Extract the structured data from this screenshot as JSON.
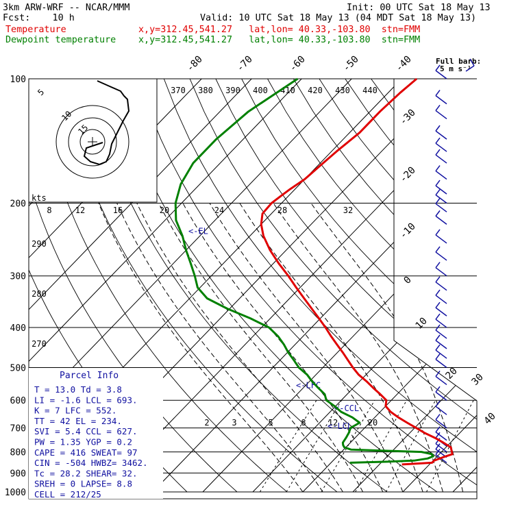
{
  "header": {
    "model": "3km ARW-WRF -- NCAR/MMM",
    "init": "Init: 00 UTC Sat 18 May 13",
    "fcst": "Fcst:    10 h",
    "valid": "Valid: 10 UTC Sat 18 May 13 (04 MDT Sat 18 May 13)",
    "temp_label": "Temperature",
    "temp_loc": "x,y=312.45,541.27   lat,lon= 40.33,-103.80  stn=FMM",
    "dew_label": "Dewpoint temperature",
    "dew_loc": "x,y=312.45,541.27   lat,lon= 40.33,-103.80  stn=FMM"
  },
  "barb_legend": {
    "line1": "Full barb:",
    "line2": "5 m s⁻¹"
  },
  "colors": {
    "temperature": "#e00000",
    "dewpoint": "#008000",
    "wind": "#1010a0",
    "hodograph": "#000000"
  },
  "hodograph": {
    "unit": "kts",
    "ring_labels": [
      "5",
      "10",
      "15"
    ],
    "x_speed_labels": [
      "8",
      "12",
      "16",
      "20",
      "24",
      "28",
      "32"
    ]
  },
  "theta_labels": [
    "370",
    "380",
    "390",
    "400",
    "410",
    "420",
    "430",
    "440"
  ],
  "theta_low_labels": [
    "290",
    "280",
    "270"
  ],
  "mixing_ratio_labels": [
    "2",
    "3",
    "5",
    "8",
    "12",
    "20"
  ],
  "markers": {
    "el": "<-EL",
    "lfc": "<-LFC",
    "ccl": "<-CCL",
    "lcl": "<-LCL"
  },
  "parcel_info": {
    "title": "Parcel Info",
    "rows": [
      "T   =   13.0  Td =   3.8",
      "LI  =   -1.6  LCL =  693.",
      "K   =      7  LFC =  552.",
      "TT  =     42  EL  =  234.",
      "SVI =    5.4  CCL =  627.",
      "PW  =   1.35  YGP =   0.2",
      "CAPE =   416  SWEAT=   97",
      "CIN  =  -504  HWBZ= 3462.",
      "Tc   =  28.2  SHEAR=  32.",
      "SREH =     0  LAPSE=  8.8",
      "CELL = 212/25"
    ]
  },
  "chart_data": {
    "type": "line",
    "title": "",
    "y_axis": "pressure (hPa), log scale",
    "ylim": [
      1000,
      100
    ],
    "pressure_ticks": [
      100,
      200,
      300,
      400,
      500,
      600,
      700,
      800,
      900,
      1000
    ],
    "pressure_tick_labels": [
      "100",
      "200",
      "300",
      "400",
      "500",
      "600",
      "700",
      "800",
      "900",
      "1000"
    ],
    "temperature_ticks": [
      -80,
      -70,
      -60,
      -50,
      -40,
      -30,
      -20,
      -10,
      0,
      10,
      20,
      30,
      40
    ],
    "temperature_tick_labels": [
      "-80",
      "-70",
      "-60",
      "-50",
      "-40",
      "-30",
      "-20",
      "-10",
      "0",
      "10",
      "20",
      "30",
      "40"
    ],
    "skew_deg_per_decade": 70,
    "series": [
      {
        "name": "Temperature",
        "p": [
          858,
          850,
          840,
          825,
          810,
          795,
          780,
          760,
          740,
          720,
          700,
          680,
          660,
          640,
          620,
          600,
          580,
          560,
          540,
          520,
          500,
          480,
          460,
          440,
          420,
          400,
          380,
          360,
          340,
          320,
          300,
          280,
          260,
          240,
          225,
          212,
          200,
          192,
          185,
          175,
          162,
          150,
          135,
          120,
          108,
          100
        ],
        "t": [
          14.5,
          20.2,
          20.2,
          21.3,
          22.6,
          21.8,
          21.0,
          18.6,
          16.0,
          13.0,
          10.3,
          7.5,
          4.7,
          2.1,
          0.0,
          -1.0,
          -3.4,
          -6.0,
          -8.6,
          -11.5,
          -14.0,
          -16.4,
          -18.9,
          -21.6,
          -24.4,
          -27.2,
          -30.3,
          -33.6,
          -37.1,
          -40.8,
          -44.6,
          -48.9,
          -53.2,
          -57.3,
          -60.0,
          -61.8,
          -62.0,
          -61.5,
          -61.0,
          -60.0,
          -59.5,
          -59.0,
          -58.0,
          -58.0,
          -57.6,
          -57.0
        ]
      },
      {
        "name": "Dewpoint temperature",
        "p": [
          850,
          845,
          840,
          830,
          820,
          810,
          800,
          790,
          780,
          770,
          760,
          740,
          720,
          700,
          680,
          660,
          640,
          620,
          600,
          580,
          560,
          540,
          520,
          500,
          480,
          460,
          440,
          420,
          400,
          380,
          360,
          340,
          320,
          300,
          280,
          260,
          240,
          220,
          200,
          180,
          160,
          140,
          120,
          100
        ],
        "t": [
          3.8,
          11.0,
          16.2,
          18.5,
          19.2,
          18.5,
          16.0,
          1.5,
          -0.3,
          -1.0,
          -1.5,
          -1.8,
          -2.2,
          -2.8,
          -2.0,
          -4.5,
          -7.8,
          -10.2,
          -13.0,
          -14.5,
          -17.0,
          -19.5,
          -21.8,
          -24.8,
          -27.2,
          -29.8,
          -32.2,
          -35.0,
          -38.5,
          -44.0,
          -50.5,
          -56.5,
          -60.5,
          -63.3,
          -66.5,
          -70.0,
          -73.5,
          -77.8,
          -81.2,
          -83.8,
          -85.4,
          -85.4,
          -84.3,
          -80.8
        ]
      }
    ],
    "wind_barb_pressures": [
      850,
      825,
      800,
      775,
      750,
      700,
      650,
      600,
      550,
      500,
      475,
      450,
      425,
      400,
      375,
      350,
      325,
      300,
      275,
      250,
      225,
      210,
      200,
      190,
      175,
      160,
      150,
      140,
      125,
      115,
      100
    ]
  }
}
